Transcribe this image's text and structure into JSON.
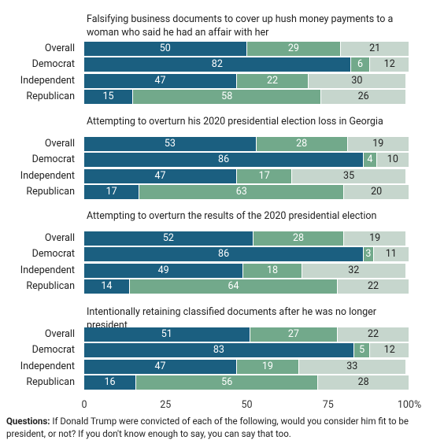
{
  "chart_data": {
    "type": "bar",
    "orientation": "horizontal",
    "stacked": true,
    "xlim": [
      0,
      100
    ],
    "xticks": [
      0,
      25,
      50,
      75,
      {
        "value": 100,
        "label": "100%"
      }
    ],
    "colors": [
      "#1b5f80",
      "#72a98b",
      "#c6d6cd"
    ],
    "text_colors": [
      "#ffffff",
      "#ffffff",
      "#222222"
    ],
    "panels": [
      {
        "title": "Falsifying business documents to cover up hush money payments to a woman who said he had an affair with her",
        "categories": [
          "Overall",
          "Democrat",
          "Independent",
          "Republican"
        ],
        "series": [
          {
            "values": [
              50,
              82,
              47,
              15
            ]
          },
          {
            "values": [
              29,
              6,
              22,
              58
            ]
          },
          {
            "values": [
              21,
              12,
              30,
              26
            ]
          }
        ]
      },
      {
        "title": "Attempting to overturn his 2020 presidential election loss in Georgia",
        "categories": [
          "Overall",
          "Democrat",
          "Independent",
          "Republican"
        ],
        "series": [
          {
            "values": [
              53,
              86,
              47,
              17
            ]
          },
          {
            "values": [
              28,
              4,
              17,
              63
            ]
          },
          {
            "values": [
              19,
              10,
              35,
              20
            ]
          }
        ]
      },
      {
        "title": "Attempting to overturn the results of the 2020 presidential election",
        "categories": [
          "Overall",
          "Democrat",
          "Independent",
          "Republican"
        ],
        "series": [
          {
            "values": [
              52,
              86,
              49,
              14
            ]
          },
          {
            "values": [
              28,
              3,
              18,
              64
            ]
          },
          {
            "values": [
              19,
              11,
              32,
              22
            ]
          }
        ]
      },
      {
        "title": "Intentionally retaining classified documents after he was no longer president",
        "categories": [
          "Overall",
          "Democrat",
          "Independent",
          "Republican"
        ],
        "series": [
          {
            "values": [
              51,
              83,
              47,
              16
            ]
          },
          {
            "values": [
              27,
              5,
              19,
              56
            ]
          },
          {
            "values": [
              22,
              12,
              33,
              28
            ]
          }
        ]
      }
    ],
    "footnote_label": "Questions:",
    "footnote": "If Donald Trump were convicted of each of the following, would you consider him fit to be president, or not? If you don't know enough to say, you can say that too."
  }
}
